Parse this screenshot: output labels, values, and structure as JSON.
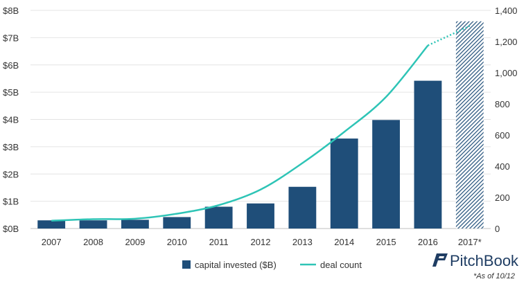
{
  "chart_data": {
    "type": "bar",
    "categories": [
      "2007",
      "2008",
      "2009",
      "2010",
      "2011",
      "2012",
      "2013",
      "2014",
      "2015",
      "2016",
      "2017*"
    ],
    "series": [
      {
        "name": "capital invested ($B)",
        "axis": "left",
        "kind": "bar",
        "color": "#1f4e79",
        "values": [
          0.3,
          0.3,
          0.32,
          0.42,
          0.8,
          0.92,
          1.53,
          3.3,
          3.98,
          5.42,
          7.6
        ],
        "hatched_last": true
      },
      {
        "name": "deal count",
        "axis": "right",
        "kind": "line",
        "color": "#2ec4b6",
        "values": [
          50,
          60,
          63,
          95,
          150,
          250,
          420,
          620,
          845,
          1175,
          1300
        ],
        "dotted_last_segment": true
      }
    ],
    "left_axis": {
      "min": 0,
      "max": 8,
      "ticks": [
        0,
        1,
        2,
        3,
        4,
        5,
        6,
        7,
        8
      ],
      "tick_labels": [
        "$0B",
        "$1B",
        "$2B",
        "$3B",
        "$4B",
        "$5B",
        "$6B",
        "$7B",
        "$8B"
      ]
    },
    "right_axis": {
      "min": 0,
      "max": 1400,
      "ticks": [
        0,
        200,
        400,
        600,
        800,
        1000,
        1200,
        1400
      ],
      "tick_labels": [
        "0",
        "200",
        "400",
        "600",
        "800",
        "1,000",
        "1,200",
        "1,400"
      ]
    },
    "grid": true,
    "legend_position": "bottom-center"
  },
  "branding": {
    "logo_text": "PitchBook"
  },
  "footnote": "*As of 10/12"
}
